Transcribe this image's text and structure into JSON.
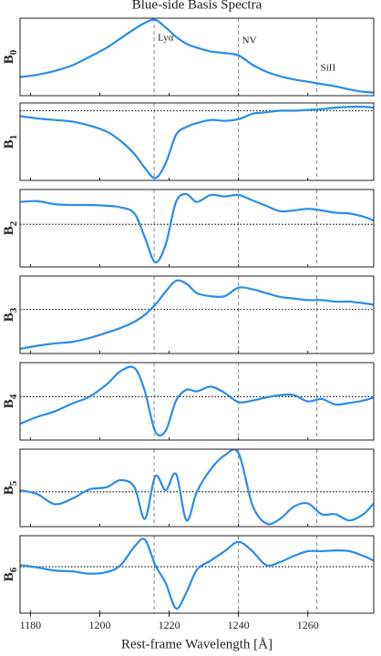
{
  "chart_data": {
    "type": "line",
    "title": "Blue-side Basis Spectra",
    "xlabel": "Rest-frame Wavelength [Å]",
    "color": "#2b8ceb",
    "xlim": [
      1177,
      1279
    ],
    "xticks": [
      1180,
      1200,
      1220,
      1240,
      1260
    ],
    "lines": [
      {
        "value": 1215.67,
        "label": "Lyα"
      },
      {
        "value": 1240,
        "label": "NV"
      },
      {
        "value": 1262.6,
        "label": "SiII"
      }
    ],
    "x": [
      1177,
      1182,
      1187,
      1192,
      1197,
      1202,
      1206,
      1210,
      1213,
      1216,
      1219,
      1222,
      1225,
      1228,
      1232,
      1236,
      1240,
      1244,
      1248,
      1252,
      1256,
      1260,
      1264,
      1268,
      1272,
      1276,
      1279
    ],
    "panels": [
      {
        "ylabel": "B",
        "ylabel_sub": "0",
        "ylim": [
          0,
          1
        ],
        "zero_line": false,
        "values": [
          0.24,
          0.27,
          0.32,
          0.39,
          0.5,
          0.62,
          0.74,
          0.86,
          0.94,
          0.98,
          0.88,
          0.76,
          0.67,
          0.62,
          0.57,
          0.55,
          0.52,
          0.4,
          0.31,
          0.25,
          0.21,
          0.18,
          0.15,
          0.12,
          0.08,
          0.05,
          0.04
        ]
      },
      {
        "ylabel": "B",
        "ylabel_sub": "1",
        "ylim": [
          -0.9,
          0.1
        ],
        "zero_line": true,
        "values": [
          -0.07,
          -0.1,
          -0.12,
          -0.14,
          -0.19,
          -0.27,
          -0.39,
          -0.56,
          -0.74,
          -0.87,
          -0.68,
          -0.31,
          -0.21,
          -0.16,
          -0.12,
          -0.13,
          -0.11,
          -0.04,
          -0.02,
          0,
          0,
          0.01,
          0.02,
          0.04,
          0.05,
          0.05,
          0.04
        ]
      },
      {
        "ylabel": "B",
        "ylabel_sub": "2",
        "ylim": [
          -0.55,
          0.45
        ],
        "zero_line": true,
        "values": [
          0.29,
          0.3,
          0.26,
          0.25,
          0.25,
          0.24,
          0.22,
          0.14,
          -0.17,
          -0.49,
          -0.26,
          0.29,
          0.39,
          0.29,
          0.38,
          0.36,
          0.38,
          0.31,
          0.24,
          0.17,
          0.18,
          0.2,
          0.18,
          0.15,
          0.14,
          0.1,
          0.05
        ]
      },
      {
        "ylabel": "B",
        "ylabel_sub": "3",
        "ylim": [
          -0.57,
          0.43
        ],
        "zero_line": true,
        "values": [
          -0.51,
          -0.47,
          -0.44,
          -0.42,
          -0.37,
          -0.3,
          -0.24,
          -0.16,
          -0.07,
          0.06,
          0.23,
          0.37,
          0.33,
          0.21,
          0.17,
          0.17,
          0.28,
          0.26,
          0.21,
          0.16,
          0.14,
          0.12,
          0.12,
          0.1,
          0.1,
          0.08,
          0.06
        ]
      },
      {
        "ylabel": "B",
        "ylabel_sub": "4",
        "ylim": [
          -0.56,
          0.44
        ],
        "zero_line": true,
        "values": [
          -0.35,
          -0.26,
          -0.19,
          -0.09,
          0,
          0.16,
          0.33,
          0.37,
          0.07,
          -0.45,
          -0.44,
          -0.05,
          0.09,
          0.07,
          0.13,
          0.05,
          -0.07,
          -0.05,
          -0.01,
          0.02,
          0.02,
          -0.06,
          -0.03,
          -0.1,
          -0.08,
          -0.05,
          -0.01
        ]
      },
      {
        "ylabel": "B",
        "ylabel_sub": "5",
        "ylim": [
          -0.45,
          0.55
        ],
        "zero_line": true,
        "values": [
          0.02,
          -0.03,
          -0.16,
          -0.09,
          0.03,
          0.06,
          0.15,
          0.06,
          -0.35,
          0.2,
          0.02,
          0.23,
          -0.37,
          0,
          0.29,
          0.47,
          0.5,
          -0.17,
          -0.41,
          -0.35,
          -0.19,
          -0.15,
          -0.29,
          -0.29,
          -0.37,
          -0.29,
          -0.15
        ]
      },
      {
        "ylabel": "B",
        "ylabel_sub": "6",
        "ylim": [
          -0.6,
          0.4
        ],
        "zero_line": true,
        "values": [
          0.02,
          -0.01,
          -0.05,
          -0.06,
          -0.09,
          -0.07,
          0.02,
          0.26,
          0.35,
          0.02,
          -0.21,
          -0.54,
          -0.33,
          -0.04,
          0.08,
          0.2,
          0.32,
          0.2,
          0.02,
          0.06,
          0.14,
          0.2,
          0.2,
          0.21,
          0.2,
          0.14,
          0.08
        ]
      }
    ]
  }
}
